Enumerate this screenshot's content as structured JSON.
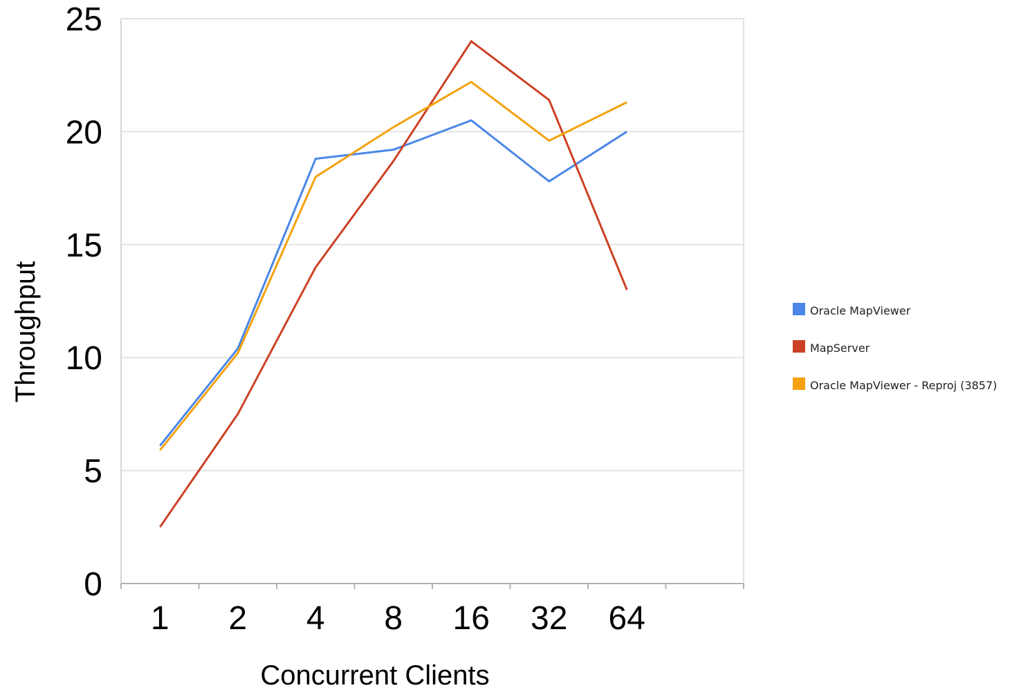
{
  "chart_data": {
    "type": "line",
    "title": "",
    "xlabel": "Concurrent Clients",
    "ylabel": "Throughput",
    "categories": [
      "1",
      "2",
      "4",
      "8",
      "16",
      "32",
      "64"
    ],
    "ylim": [
      0,
      25
    ],
    "yticks": [
      "0",
      "5",
      "10",
      "15",
      "20",
      "25"
    ],
    "grid": true,
    "legend_position": "right",
    "series": [
      {
        "name": "Oracle MapViewer",
        "color": "#4a86e8",
        "values": [
          6.1,
          10.4,
          18.8,
          19.2,
          20.5,
          17.8,
          20.0
        ]
      },
      {
        "name": "MapServer",
        "color": "#cc4125",
        "values": [
          2.5,
          7.5,
          14.0,
          18.7,
          24.0,
          21.4,
          13.0
        ]
      },
      {
        "name": "Oracle MapViewer - Reproj (3857)",
        "color": "#f4a20f",
        "values": [
          5.9,
          10.2,
          18.0,
          20.2,
          22.2,
          19.6,
          21.3
        ]
      }
    ]
  }
}
